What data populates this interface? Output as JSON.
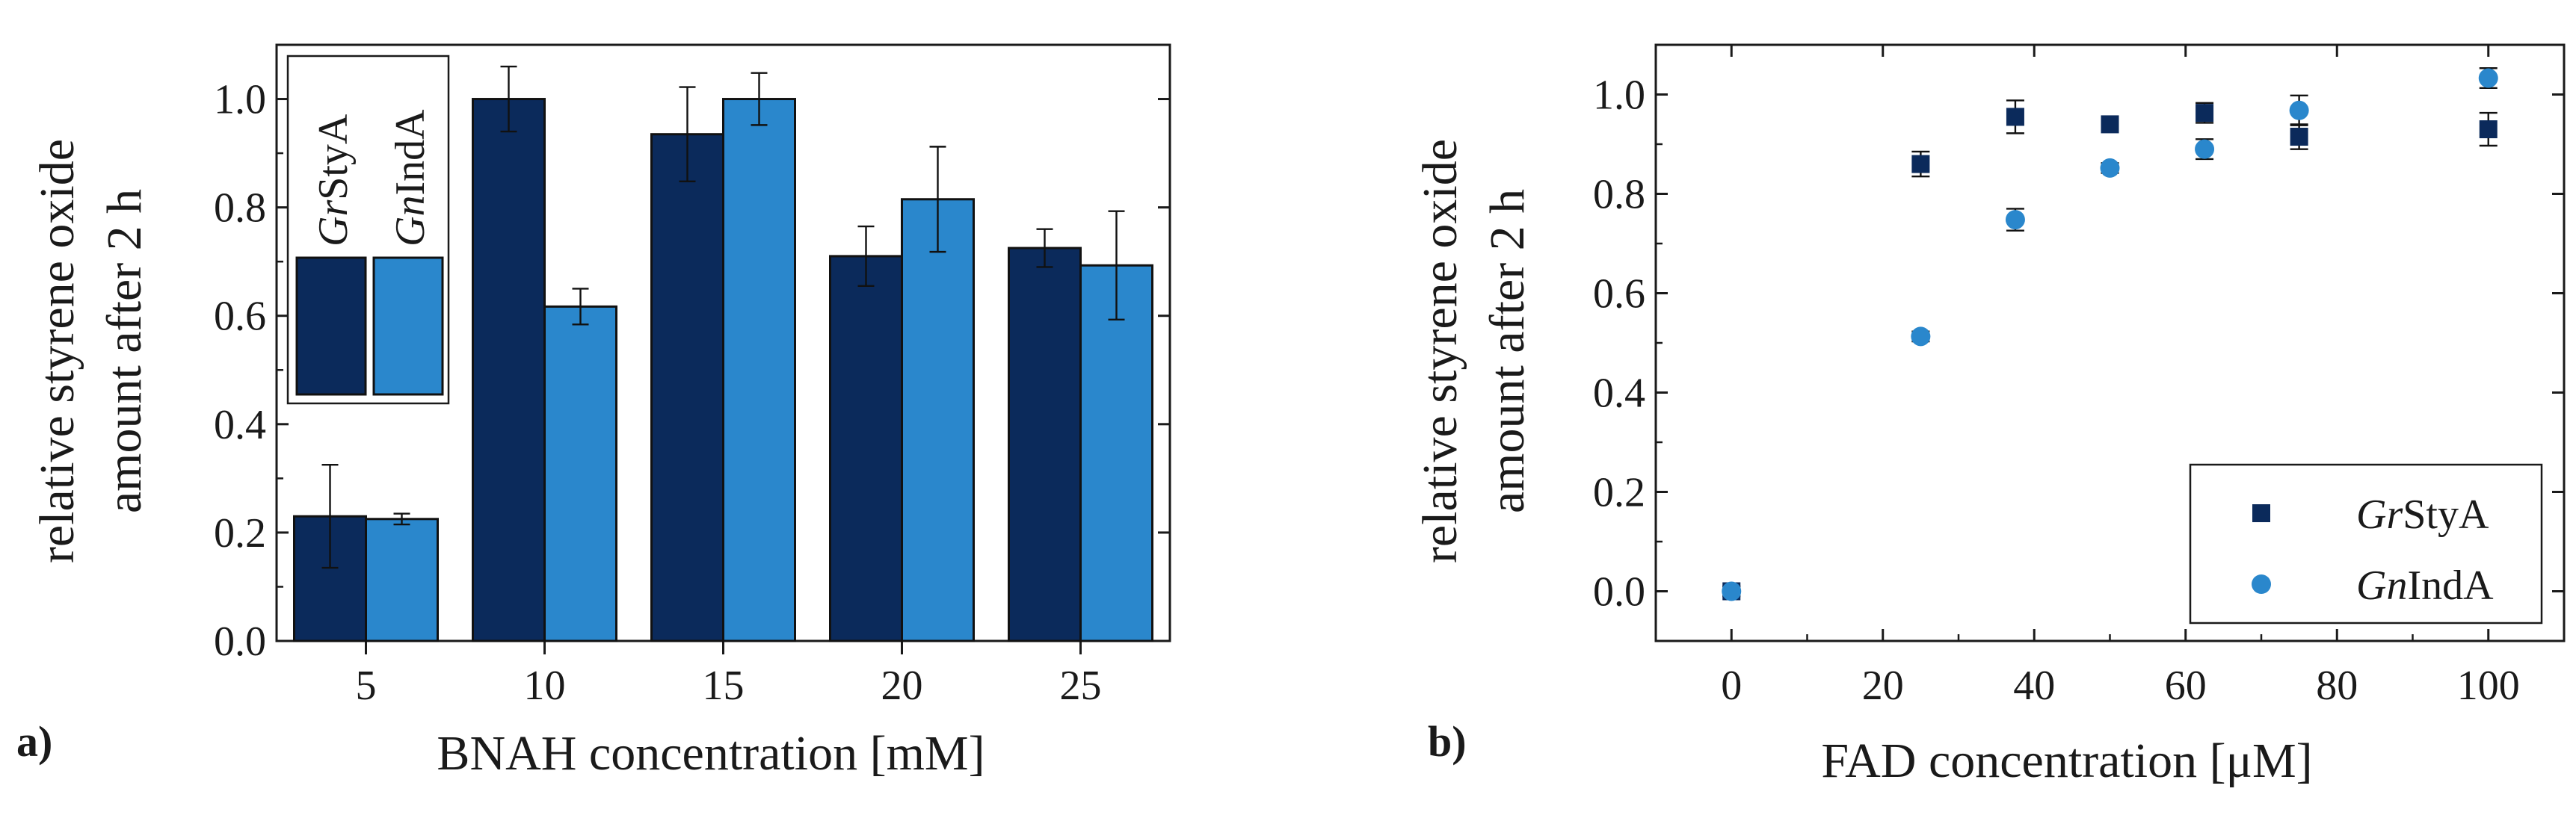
{
  "chart_data": [
    {
      "type": "bar",
      "panel_label": "a)",
      "title": "",
      "xlabel": "BNAH concentration [mM]",
      "ylabel_lines": [
        "relative styrene oxide",
        "amount after 2 h"
      ],
      "ylim": [
        0,
        1.1
      ],
      "yticks": [
        0.0,
        0.2,
        0.4,
        0.6,
        0.8,
        1.0
      ],
      "ytick_labels": [
        "0.0",
        "0.2",
        "0.4",
        "0.6",
        "0.8",
        "1.0"
      ],
      "categories": [
        "5",
        "10",
        "15",
        "20",
        "25"
      ],
      "series": [
        {
          "name_italic": "Gr",
          "name_rest": "StyA",
          "color": "#0b2a5b",
          "values": [
            0.23,
            1.0,
            0.935,
            0.71,
            0.725
          ],
          "errors": [
            0.095,
            0.06,
            0.087,
            0.055,
            0.035
          ]
        },
        {
          "name_italic": "Gn",
          "name_rest": "IndA",
          "color": "#2a87cc",
          "values": [
            0.225,
            0.617,
            1.0,
            0.815,
            0.693
          ],
          "errors": [
            0.01,
            0.033,
            0.048,
            0.097,
            0.1
          ]
        }
      ],
      "legend_placement": "top-left, inside"
    },
    {
      "type": "scatter",
      "panel_label": "b)",
      "title": "",
      "xlabel": "FAD concentration [μM]",
      "ylabel_lines": [
        "relative styrene oxide",
        "amount after 2 h"
      ],
      "xlim": [
        -10,
        110
      ],
      "ylim": [
        -0.1,
        1.1
      ],
      "xticks": [
        0,
        20,
        40,
        60,
        80,
        100
      ],
      "xtick_labels": [
        "0",
        "20",
        "40",
        "60",
        "80",
        "100"
      ],
      "yticks": [
        0.0,
        0.2,
        0.4,
        0.6,
        0.8,
        1.0
      ],
      "ytick_labels": [
        "0.0",
        "0.2",
        "0.4",
        "0.6",
        "0.8",
        "1.0"
      ],
      "series": [
        {
          "name_italic": "Gr",
          "name_rest": "StyA",
          "marker": "square",
          "color": "#0b2a5b",
          "x": [
            0,
            25,
            37.5,
            50,
            62.5,
            75,
            100
          ],
          "y": [
            0.0,
            0.86,
            0.955,
            0.94,
            0.963,
            0.915,
            0.93
          ],
          "errors": [
            0.01,
            0.025,
            0.033,
            0.01,
            0.02,
            0.025,
            0.033
          ]
        },
        {
          "name_italic": "Gn",
          "name_rest": "IndA",
          "marker": "circle",
          "color": "#2a87cc",
          "x": [
            0,
            25,
            37.5,
            50,
            62.5,
            75,
            100
          ],
          "y": [
            0.0,
            0.513,
            0.748,
            0.852,
            0.89,
            0.968,
            1.033
          ],
          "errors": [
            0.005,
            0.01,
            0.022,
            0.01,
            0.02,
            0.03,
            0.02
          ]
        }
      ],
      "legend_placement": "bottom-right, inside"
    }
  ]
}
